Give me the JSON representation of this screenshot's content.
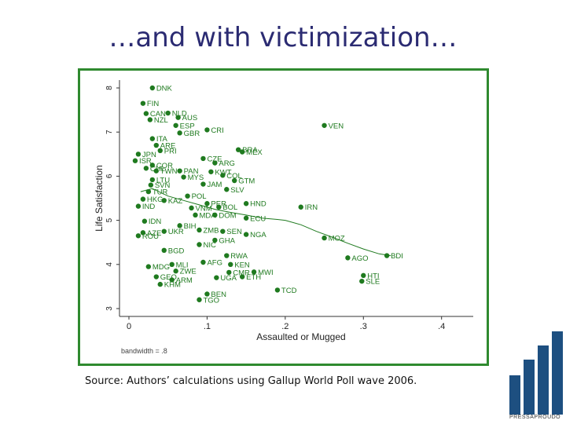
{
  "slide": {
    "title": "…and with victimization…",
    "source": "Source: Authors’ calculations using Gallup World Poll wave 2006.",
    "logo_text": "PRESSAPROUDO",
    "frame_color": "#2f8a2f",
    "point_color": "#1f7a1f",
    "text_color": "#2b2b72"
  },
  "chart_data": {
    "type": "scatter",
    "xlabel": "Assaulted or Mugged",
    "ylabel": "Life Satisfaction",
    "xlim": [
      0,
      0.4
    ],
    "ylim": [
      3,
      8
    ],
    "xticks": [
      "0",
      ".1",
      ".2",
      ".3",
      ".4"
    ],
    "yticks": [
      "3",
      "4",
      "5",
      "6",
      "7",
      "8"
    ],
    "note": "bandwidth = .8",
    "grid": false,
    "smoother": [
      [
        0.015,
        5.65
      ],
      [
        0.03,
        5.72
      ],
      [
        0.05,
        5.55
      ],
      [
        0.07,
        5.45
      ],
      [
        0.09,
        5.35
      ],
      [
        0.11,
        5.25
      ],
      [
        0.13,
        5.18
      ],
      [
        0.15,
        5.12
      ],
      [
        0.17,
        5.05
      ],
      [
        0.19,
        5.02
      ],
      [
        0.2,
        5.0
      ],
      [
        0.22,
        4.9
      ],
      [
        0.24,
        4.75
      ],
      [
        0.26,
        4.62
      ],
      [
        0.28,
        4.48
      ],
      [
        0.3,
        4.35
      ],
      [
        0.32,
        4.24
      ],
      [
        0.335,
        4.2
      ]
    ],
    "points": [
      {
        "label": "DNK",
        "x": 0.03,
        "y": 8.0
      },
      {
        "label": "FIN",
        "x": 0.018,
        "y": 7.65
      },
      {
        "label": "NLD",
        "x": 0.05,
        "y": 7.43
      },
      {
        "label": "AUS",
        "x": 0.063,
        "y": 7.33
      },
      {
        "label": "CAN",
        "x": 0.022,
        "y": 7.42
      },
      {
        "label": "NZL",
        "x": 0.027,
        "y": 7.28
      },
      {
        "label": "ESP",
        "x": 0.06,
        "y": 7.15
      },
      {
        "label": "GBR",
        "x": 0.065,
        "y": 6.98
      },
      {
        "label": "CRI",
        "x": 0.1,
        "y": 7.05
      },
      {
        "label": "VEN",
        "x": 0.25,
        "y": 7.15
      },
      {
        "label": "ITA",
        "x": 0.03,
        "y": 6.85
      },
      {
        "label": "ARE",
        "x": 0.035,
        "y": 6.7
      },
      {
        "label": "PRI",
        "x": 0.04,
        "y": 6.58
      },
      {
        "label": "BRA",
        "x": 0.14,
        "y": 6.6
      },
      {
        "label": "MEX",
        "x": 0.145,
        "y": 6.55
      },
      {
        "label": "JPN",
        "x": 0.012,
        "y": 6.5
      },
      {
        "label": "ISR",
        "x": 0.008,
        "y": 6.35
      },
      {
        "label": "CZE",
        "x": 0.095,
        "y": 6.4
      },
      {
        "label": "ARG",
        "x": 0.11,
        "y": 6.3
      },
      {
        "label": "COR",
        "x": 0.03,
        "y": 6.25
      },
      {
        "label": "CHL",
        "x": 0.022,
        "y": 6.18
      },
      {
        "label": "TWN",
        "x": 0.035,
        "y": 6.12
      },
      {
        "label": "PAN",
        "x": 0.065,
        "y": 6.12
      },
      {
        "label": "KWT",
        "x": 0.105,
        "y": 6.1
      },
      {
        "label": "COL",
        "x": 0.12,
        "y": 6.02
      },
      {
        "label": "MYS",
        "x": 0.07,
        "y": 5.98
      },
      {
        "label": "GTM",
        "x": 0.135,
        "y": 5.9
      },
      {
        "label": "LTU",
        "x": 0.03,
        "y": 5.92
      },
      {
        "label": "SVN",
        "x": 0.028,
        "y": 5.8
      },
      {
        "label": "JAM",
        "x": 0.095,
        "y": 5.82
      },
      {
        "label": "SLV",
        "x": 0.125,
        "y": 5.7
      },
      {
        "label": "POL",
        "x": 0.075,
        "y": 5.55
      },
      {
        "label": "TUR",
        "x": 0.025,
        "y": 5.65
      },
      {
        "label": "HKG",
        "x": 0.018,
        "y": 5.48
      },
      {
        "label": "KAZ",
        "x": 0.045,
        "y": 5.45
      },
      {
        "label": "HND",
        "x": 0.15,
        "y": 5.38
      },
      {
        "label": "PER",
        "x": 0.1,
        "y": 5.38
      },
      {
        "label": "IRN",
        "x": 0.22,
        "y": 5.3
      },
      {
        "label": "BOL",
        "x": 0.115,
        "y": 5.3
      },
      {
        "label": "VNM",
        "x": 0.08,
        "y": 5.28
      },
      {
        "label": "IND",
        "x": 0.012,
        "y": 5.32
      },
      {
        "label": "MDA",
        "x": 0.085,
        "y": 5.12
      },
      {
        "label": "DOM",
        "x": 0.11,
        "y": 5.12
      },
      {
        "label": "ECU",
        "x": 0.15,
        "y": 5.05
      },
      {
        "label": "IDN",
        "x": 0.02,
        "y": 4.98
      },
      {
        "label": "BIH",
        "x": 0.065,
        "y": 4.88
      },
      {
        "label": "ZMB",
        "x": 0.09,
        "y": 4.78
      },
      {
        "label": "SEN",
        "x": 0.12,
        "y": 4.75
      },
      {
        "label": "UKR",
        "x": 0.045,
        "y": 4.75
      },
      {
        "label": "NGA",
        "x": 0.15,
        "y": 4.68
      },
      {
        "label": "MOZ",
        "x": 0.25,
        "y": 4.6
      },
      {
        "label": "AZE",
        "x": 0.018,
        "y": 4.72
      },
      {
        "label": "ROU",
        "x": 0.012,
        "y": 4.65
      },
      {
        "label": "GHA",
        "x": 0.11,
        "y": 4.55
      },
      {
        "label": "NIC",
        "x": 0.09,
        "y": 4.45
      },
      {
        "label": "BGD",
        "x": 0.045,
        "y": 4.32
      },
      {
        "label": "AGO",
        "x": 0.28,
        "y": 4.15
      },
      {
        "label": "BDI",
        "x": 0.33,
        "y": 4.2
      },
      {
        "label": "RWA",
        "x": 0.125,
        "y": 4.2
      },
      {
        "label": "AFG",
        "x": 0.095,
        "y": 4.05
      },
      {
        "label": "MLI",
        "x": 0.055,
        "y": 4.0
      },
      {
        "label": "MDG",
        "x": 0.025,
        "y": 3.95
      },
      {
        "label": "KEN",
        "x": 0.13,
        "y": 4.0
      },
      {
        "label": "ZWE",
        "x": 0.06,
        "y": 3.85
      },
      {
        "label": "CMR",
        "x": 0.128,
        "y": 3.82
      },
      {
        "label": "MWI",
        "x": 0.16,
        "y": 3.83
      },
      {
        "label": "HTI",
        "x": 0.3,
        "y": 3.75
      },
      {
        "label": "ETH",
        "x": 0.145,
        "y": 3.72
      },
      {
        "label": "UGA",
        "x": 0.112,
        "y": 3.7
      },
      {
        "label": "GEO",
        "x": 0.035,
        "y": 3.72
      },
      {
        "label": "ARM",
        "x": 0.055,
        "y": 3.65
      },
      {
        "label": "SLE",
        "x": 0.298,
        "y": 3.62
      },
      {
        "label": "KHM",
        "x": 0.04,
        "y": 3.55
      },
      {
        "label": "TCD",
        "x": 0.19,
        "y": 3.42
      },
      {
        "label": "BEN",
        "x": 0.1,
        "y": 3.33
      },
      {
        "label": "TGO",
        "x": 0.09,
        "y": 3.2
      }
    ]
  }
}
